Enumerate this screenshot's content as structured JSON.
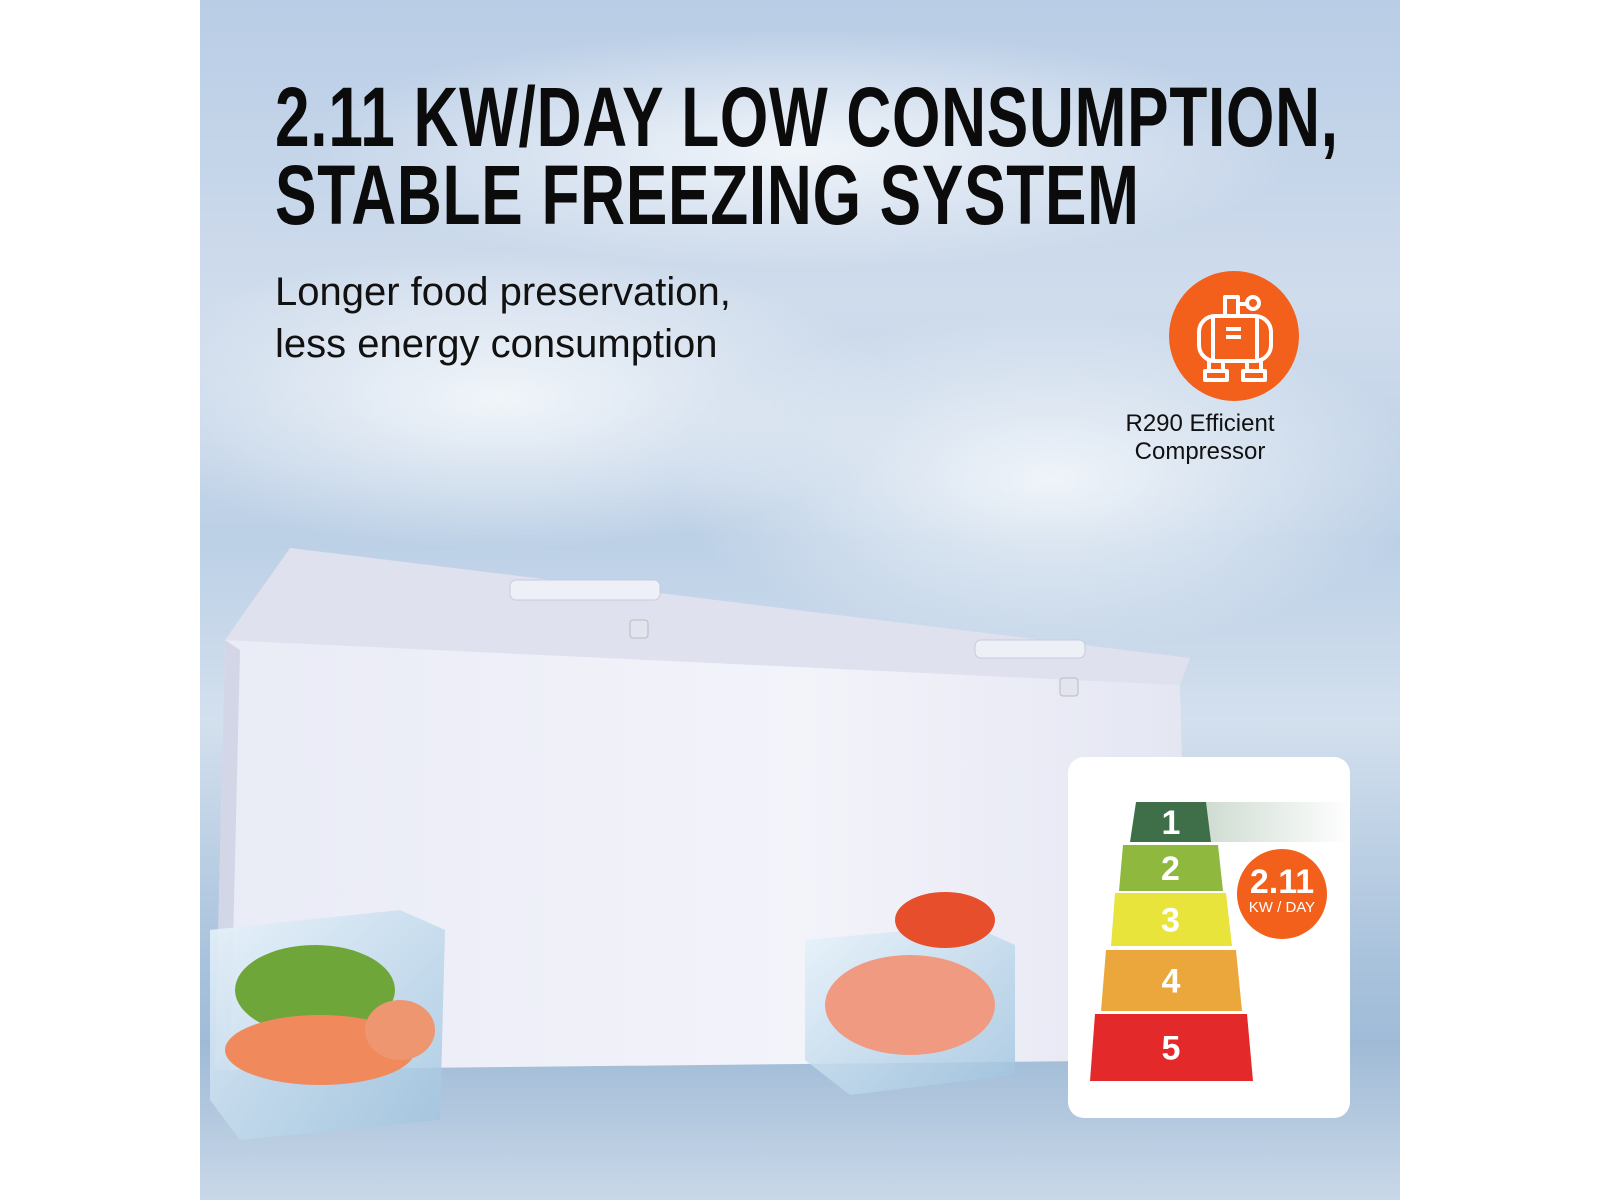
{
  "headline": {
    "line1": "2.11 KW/DAY LOW CONSUMPTION,",
    "line2": "STABLE FREEZING SYSTEM"
  },
  "subheadline": {
    "line1": "Longer food preservation,",
    "line2": "less energy consumption"
  },
  "feature": {
    "icon": "compressor-icon",
    "line1": "R290 Efficient",
    "line2": "Compressor",
    "color": "#f2601b"
  },
  "energy_label": {
    "levels": [
      "1",
      "2",
      "3",
      "4",
      "5"
    ],
    "level_colors": [
      "#3e6f48",
      "#8fb83f",
      "#e8e43c",
      "#eba73b",
      "#e4292a"
    ],
    "current_level": "1",
    "value": "2.11",
    "unit": "KW / DAY"
  }
}
